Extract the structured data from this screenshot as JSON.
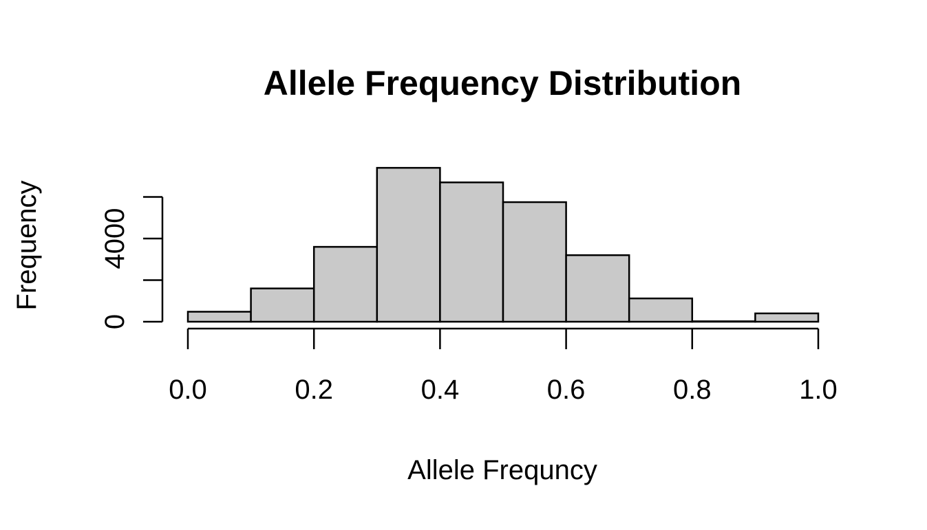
{
  "chart_data": {
    "type": "bar",
    "title": "Allele Frequency Distribution",
    "xlabel": "Allele Frequncy",
    "ylabel": "Frequency",
    "bins": [
      {
        "start": 0.0,
        "end": 0.1,
        "count": 480
      },
      {
        "start": 0.1,
        "end": 0.2,
        "count": 1600
      },
      {
        "start": 0.2,
        "end": 0.3,
        "count": 3600
      },
      {
        "start": 0.3,
        "end": 0.4,
        "count": 7400
      },
      {
        "start": 0.4,
        "end": 0.5,
        "count": 6700
      },
      {
        "start": 0.5,
        "end": 0.6,
        "count": 5750
      },
      {
        "start": 0.6,
        "end": 0.7,
        "count": 3200
      },
      {
        "start": 0.7,
        "end": 0.8,
        "count": 1120
      },
      {
        "start": 0.8,
        "end": 0.9,
        "count": 20
      },
      {
        "start": 0.9,
        "end": 1.0,
        "count": 400
      }
    ],
    "xlim": [
      0.0,
      1.0
    ],
    "ylim": [
      0,
      7400
    ],
    "xticks": [
      "0.0",
      "0.2",
      "0.4",
      "0.6",
      "0.8",
      "1.0"
    ],
    "yticks": [
      {
        "value": 0,
        "label": "0"
      },
      {
        "value": 2000,
        "label": ""
      },
      {
        "value": 4000,
        "label": "4000"
      },
      {
        "value": 6000,
        "label": ""
      }
    ],
    "grid": false,
    "colors": {
      "bar_fill": "#c9c9c9",
      "bar_stroke": "#000000"
    }
  }
}
